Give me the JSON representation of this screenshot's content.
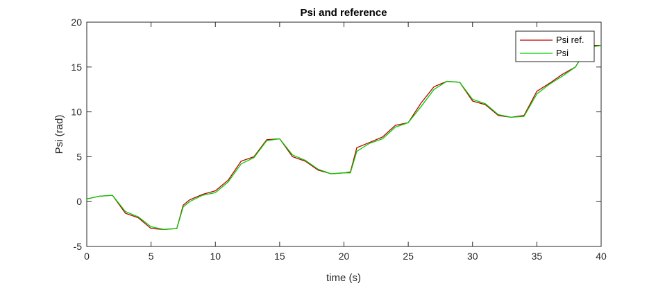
{
  "chart_data": {
    "type": "line",
    "title": "Psi and reference",
    "xlabel": "time (s)",
    "ylabel": "Psi (rad)",
    "xlim": [
      0,
      40
    ],
    "ylim": [
      -5,
      20
    ],
    "xticks": [
      0,
      5,
      10,
      15,
      20,
      25,
      30,
      35,
      40
    ],
    "yticks": [
      -5,
      0,
      5,
      10,
      15,
      20
    ],
    "grid": false,
    "legend_position": "top-right",
    "series": [
      {
        "name": "Psi ref.",
        "color": "#c00000",
        "x": [
          0,
          1,
          2,
          3,
          4,
          5,
          6,
          7,
          7.5,
          8,
          9,
          10,
          11,
          12,
          13,
          14,
          15,
          16,
          17,
          18,
          19,
          20,
          20.5,
          21,
          22,
          23,
          24,
          25,
          26,
          27,
          28,
          29,
          30,
          31,
          32,
          33,
          34,
          35,
          36,
          37,
          38,
          39,
          40
        ],
        "y": [
          0.3,
          0.6,
          0.7,
          -1.3,
          -1.8,
          -3.0,
          -3.1,
          -3.0,
          -0.4,
          0.2,
          0.8,
          1.2,
          2.4,
          4.5,
          5.0,
          6.9,
          7.0,
          5.0,
          4.5,
          3.5,
          3.1,
          3.2,
          3.3,
          6.0,
          6.6,
          7.2,
          8.5,
          8.8,
          11.0,
          12.8,
          13.4,
          13.3,
          11.2,
          10.8,
          9.6,
          9.4,
          9.6,
          12.3,
          13.2,
          14.2,
          15.0,
          17.4,
          17.4
        ]
      },
      {
        "name": "Psi",
        "color": "#00cc00",
        "x": [
          0,
          1,
          2,
          3,
          4,
          5,
          6,
          7,
          7.5,
          8,
          9,
          10,
          11,
          12,
          13,
          14,
          15,
          16,
          17,
          18,
          19,
          20,
          20.5,
          21,
          22,
          23,
          24,
          25,
          26,
          27,
          28,
          29,
          30,
          31,
          32,
          33,
          34,
          35,
          36,
          37,
          38,
          39,
          40
        ],
        "y": [
          0.3,
          0.6,
          0.7,
          -1.1,
          -1.7,
          -2.8,
          -3.1,
          -3.0,
          -0.6,
          0.0,
          0.7,
          1.0,
          2.2,
          4.2,
          4.9,
          6.8,
          7.0,
          5.2,
          4.6,
          3.6,
          3.1,
          3.2,
          3.2,
          5.6,
          6.5,
          7.0,
          8.3,
          8.8,
          10.6,
          12.5,
          13.4,
          13.3,
          11.4,
          10.9,
          9.7,
          9.4,
          9.5,
          12.0,
          13.1,
          14.0,
          15.0,
          17.2,
          17.4
        ]
      }
    ]
  }
}
